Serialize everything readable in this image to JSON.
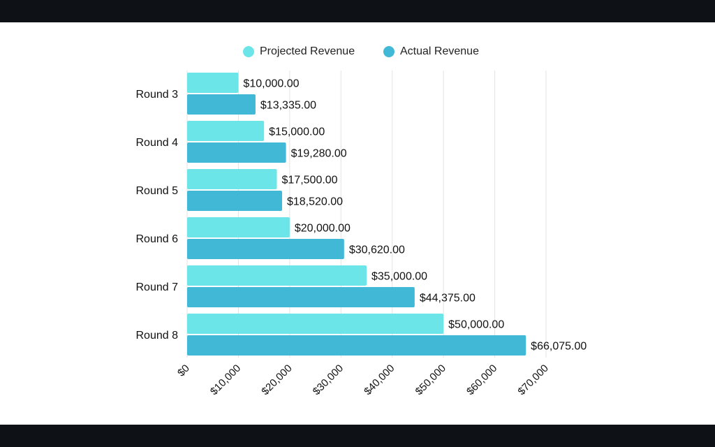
{
  "chart_data": {
    "type": "bar",
    "orientation": "horizontal",
    "categories": [
      "Round 3",
      "Round 4",
      "Round 5",
      "Round 6",
      "Round 7",
      "Round 8"
    ],
    "series": [
      {
        "name": "Projected Revenue",
        "color": "#6ce5e8",
        "values": [
          10000,
          15000,
          17500,
          20000,
          35000,
          50000
        ],
        "labels": [
          "$10,000.00",
          "$15,000.00",
          "$17,500.00",
          "$20,000.00",
          "$35,000.00",
          "$50,000.00"
        ]
      },
      {
        "name": "Actual Revenue",
        "color": "#41b8d5",
        "values": [
          13335,
          19280,
          18520,
          30620,
          44375,
          66075
        ],
        "labels": [
          "$13,335.00",
          "$19,280.00",
          "$18,520.00",
          "$30,620.00",
          "$44,375.00",
          "$66,075.00"
        ]
      }
    ],
    "xlim": [
      0,
      70000
    ],
    "xticks": [
      0,
      10000,
      20000,
      30000,
      40000,
      50000,
      60000,
      70000
    ],
    "xtick_labels": [
      "$0",
      "$10,000",
      "$20,000",
      "$30,000",
      "$40,000",
      "$50,000",
      "$60,000",
      "$70,000"
    ],
    "grid": "vertical",
    "legend_position": "top-center",
    "title": "",
    "xlabel": "",
    "ylabel": ""
  }
}
